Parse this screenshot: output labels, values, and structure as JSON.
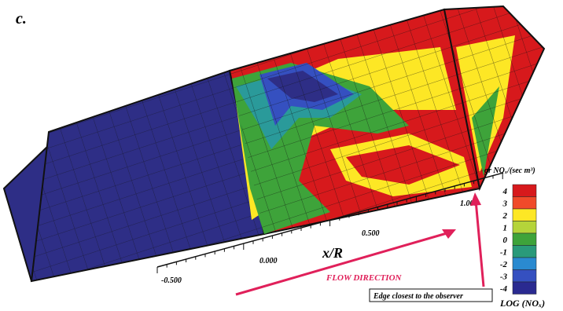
{
  "panel_label": "c.",
  "axis": {
    "label": "x/R",
    "ticks": [
      "-0.500",
      "0.000",
      "0.500",
      "1.000"
    ]
  },
  "colorbar": {
    "title": "gr NOₓ/(sec m³)",
    "caption": "LOG (NOₓ)",
    "levels": [
      4,
      3,
      2,
      1,
      0,
      -1,
      -2,
      -3,
      -4
    ],
    "colors": [
      "#d7191c",
      "#f04a2a",
      "#fde725",
      "#b5d43a",
      "#3ea33a",
      "#2a9a7a",
      "#2a8ad0",
      "#3550c0",
      "#2a2a90"
    ]
  },
  "annotations": {
    "flow": "FLOW DIRECTION",
    "edge": "Edge closest to the observer"
  }
}
